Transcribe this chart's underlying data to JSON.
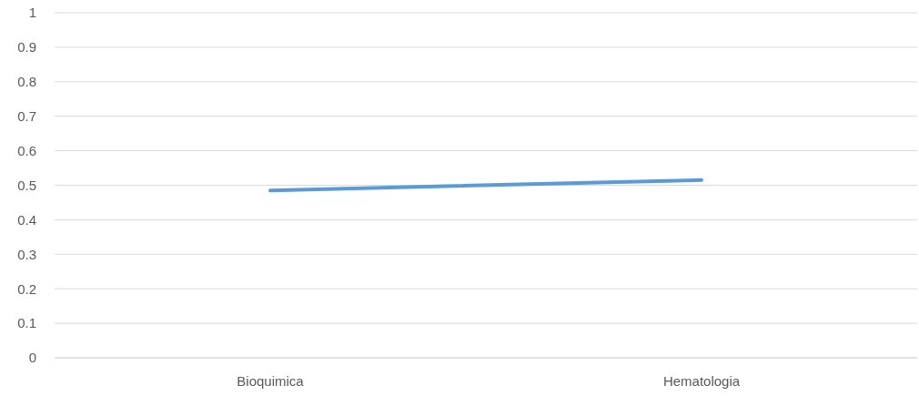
{
  "chart_data": {
    "type": "line",
    "categories": [
      "Bioquimica",
      "Hematologia"
    ],
    "series": [
      {
        "color": "#5b9bd5",
        "values": [
          0.485,
          0.515
        ]
      }
    ],
    "ylim": [
      0,
      1
    ],
    "yticks": [
      0,
      0.1,
      0.2,
      0.3,
      0.4,
      0.5,
      0.6,
      0.7,
      0.8,
      0.9,
      1
    ],
    "grid": "y",
    "legend": false,
    "marker": "none",
    "line_style": "solid"
  }
}
